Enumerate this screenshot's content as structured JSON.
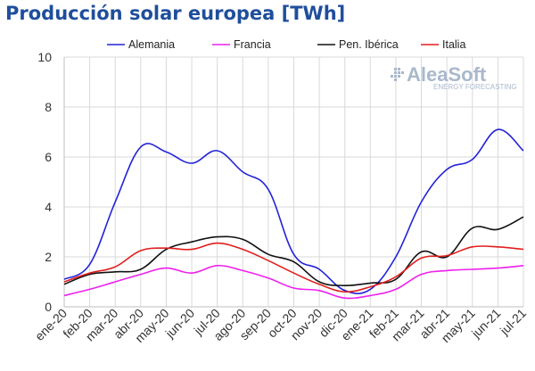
{
  "title": "Producción solar europea [TWh]",
  "logo": {
    "name": "AleaSoft",
    "tagline": "ENERGY FORECASTING"
  },
  "chart_data": {
    "type": "line",
    "title": "Producción solar europea [TWh]",
    "xlabel": "",
    "ylabel": "",
    "x": [
      "ene-20",
      "feb-20",
      "mar-20",
      "abr-20",
      "may-20",
      "jun-20",
      "jul-20",
      "ago-20",
      "sep-20",
      "oct-20",
      "nov-20",
      "dic-20",
      "ene-21",
      "feb-21",
      "mar-21",
      "abr-21",
      "may-21",
      "jun-21",
      "jul-21"
    ],
    "ylim": [
      0,
      10
    ],
    "yticks": [
      "0",
      "2",
      "4",
      "6",
      "8",
      "10"
    ],
    "grid": true,
    "legend_position": "top",
    "series": [
      {
        "name": "Alemania",
        "color": "#2323d9",
        "values": [
          1.1,
          1.7,
          4.2,
          6.4,
          6.2,
          5.75,
          6.25,
          5.4,
          4.7,
          2.1,
          1.5,
          0.65,
          0.7,
          2.0,
          4.2,
          5.5,
          5.9,
          7.1,
          6.25
        ]
      },
      {
        "name": "Francia",
        "color": "#ee20ee",
        "values": [
          0.45,
          0.7,
          1.0,
          1.3,
          1.55,
          1.35,
          1.65,
          1.45,
          1.15,
          0.75,
          0.65,
          0.35,
          0.45,
          0.7,
          1.3,
          1.45,
          1.5,
          1.55,
          1.65
        ]
      },
      {
        "name": "Pen. Ibérica",
        "color": "#111111",
        "values": [
          0.9,
          1.3,
          1.4,
          1.5,
          2.3,
          2.6,
          2.8,
          2.7,
          2.1,
          1.8,
          1.0,
          0.85,
          0.95,
          1.1,
          2.2,
          2.0,
          3.15,
          3.1,
          3.6
        ]
      },
      {
        "name": "Italia",
        "color": "#e11e1e",
        "values": [
          1.0,
          1.35,
          1.6,
          2.25,
          2.35,
          2.3,
          2.55,
          2.3,
          1.85,
          1.35,
          0.9,
          0.6,
          0.8,
          1.2,
          1.95,
          2.05,
          2.4,
          2.4,
          2.3
        ]
      }
    ]
  }
}
